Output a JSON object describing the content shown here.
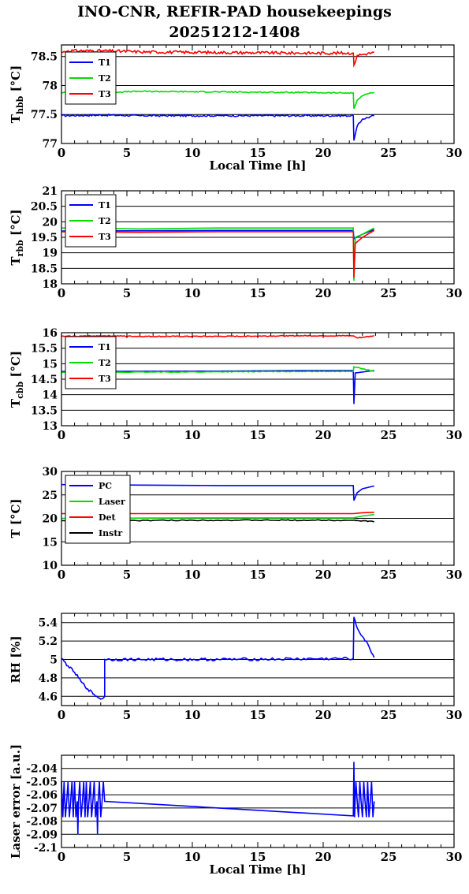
{
  "page": {
    "title": "INO-CNR, REFIR-PAD housekeepings",
    "subtitle": "20251212-1408"
  },
  "colors": {
    "blue": "#0000ff",
    "green": "#00dd00",
    "red": "#ff0000",
    "black": "#000000"
  },
  "chart_data": [
    {
      "type": "line",
      "ylabel_main": "T",
      "ylabel_sub": "hbb",
      "ylabel_tail": " [°C]",
      "xlabel": "Local Time [h]",
      "xlim": [
        0,
        30
      ],
      "xticks": [
        0,
        5,
        10,
        15,
        20,
        25,
        30
      ],
      "ylim": [
        77,
        78.7
      ],
      "yticks": [
        77,
        77.5,
        78,
        78.5
      ],
      "ytick_labels": [
        "77",
        "77.5",
        "78",
        "78.5"
      ],
      "grid": true,
      "legend_position": "top-left",
      "series": [
        {
          "name": "T1",
          "color": "#0000ff",
          "noise": 0.015,
          "points": [
            [
              0,
              77.48
            ],
            [
              3.2,
              77.49
            ],
            [
              6,
              77.48
            ],
            [
              12,
              77.48
            ],
            [
              18,
              77.48
            ],
            [
              22.3,
              77.48
            ],
            [
              22.35,
              77.05
            ],
            [
              22.6,
              77.3
            ],
            [
              23,
              77.42
            ],
            [
              23.9,
              77.48
            ]
          ]
        },
        {
          "name": "T2",
          "color": "#00dd00",
          "noise": 0.01,
          "points": [
            [
              0,
              77.88
            ],
            [
              3.2,
              77.88
            ],
            [
              6,
              77.9
            ],
            [
              12,
              77.89
            ],
            [
              18,
              77.88
            ],
            [
              22.3,
              77.87
            ],
            [
              22.35,
              77.6
            ],
            [
              22.6,
              77.75
            ],
            [
              23.2,
              77.85
            ],
            [
              23.9,
              77.88
            ]
          ]
        },
        {
          "name": "T3",
          "color": "#ff0000",
          "noise": 0.025,
          "points": [
            [
              0,
              78.57
            ],
            [
              0.5,
              78.6
            ],
            [
              3.2,
              78.6
            ],
            [
              6,
              78.58
            ],
            [
              12,
              78.57
            ],
            [
              18,
              78.56
            ],
            [
              22.3,
              78.56
            ],
            [
              22.35,
              78.35
            ],
            [
              22.6,
              78.52
            ],
            [
              23.9,
              78.57
            ]
          ]
        }
      ]
    },
    {
      "type": "line",
      "ylabel_main": "T",
      "ylabel_sub": "rbb",
      "ylabel_tail": " [°C]",
      "xlabel": "",
      "xlim": [
        0,
        30
      ],
      "xticks": [
        0,
        5,
        10,
        15,
        20,
        25,
        30
      ],
      "ylim": [
        18,
        21
      ],
      "yticks": [
        18,
        18.5,
        19,
        19.5,
        20,
        20.5,
        21
      ],
      "ytick_labels": [
        "18",
        "18.5",
        "19",
        "19.5",
        "20",
        "20.5",
        "21"
      ],
      "grid": true,
      "legend_position": "top-left",
      "series": [
        {
          "name": "T1",
          "color": "#0000ff",
          "noise": 0.0,
          "points": [
            [
              0,
              19.7
            ],
            [
              12,
              19.72
            ],
            [
              22.3,
              19.72
            ],
            [
              22.35,
              19.45
            ],
            [
              23,
              19.6
            ],
            [
              23.9,
              19.75
            ]
          ]
        },
        {
          "name": "T2",
          "color": "#00dd00",
          "noise": 0.0,
          "points": [
            [
              0,
              19.8
            ],
            [
              6,
              19.77
            ],
            [
              12,
              19.8
            ],
            [
              22.3,
              19.8
            ],
            [
              22.35,
              18.1
            ],
            [
              22.45,
              19.5
            ],
            [
              23,
              19.6
            ],
            [
              23.9,
              19.8
            ]
          ]
        },
        {
          "name": "T3",
          "color": "#ff0000",
          "noise": 0.0,
          "points": [
            [
              0,
              19.68
            ],
            [
              6,
              19.66
            ],
            [
              12,
              19.68
            ],
            [
              22.3,
              19.68
            ],
            [
              22.35,
              18.2
            ],
            [
              22.45,
              19.3
            ],
            [
              23,
              19.5
            ],
            [
              23.9,
              19.72
            ]
          ]
        }
      ]
    },
    {
      "type": "line",
      "ylabel_main": "T",
      "ylabel_sub": "cbb",
      "ylabel_tail": " [°C]",
      "xlabel": "",
      "xlim": [
        0,
        30
      ],
      "xticks": [
        0,
        5,
        10,
        15,
        20,
        25,
        30
      ],
      "ylim": [
        13,
        16
      ],
      "yticks": [
        13,
        13.5,
        14,
        14.5,
        15,
        15.5,
        16
      ],
      "ytick_labels": [
        "13",
        "13.5",
        "14",
        "14.5",
        "15",
        "15.5",
        "16"
      ],
      "grid": true,
      "legend_position": "top-left",
      "series": [
        {
          "name": "T1",
          "color": "#0000ff",
          "noise": 0.0,
          "points": [
            [
              0,
              14.75
            ],
            [
              12,
              14.76
            ],
            [
              18,
              14.78
            ],
            [
              22.3,
              14.78
            ],
            [
              22.35,
              13.7
            ],
            [
              22.45,
              14.7
            ],
            [
              23.9,
              14.78
            ]
          ]
        },
        {
          "name": "T2",
          "color": "#00dd00",
          "noise": 0.01,
          "points": [
            [
              0,
              14.72
            ],
            [
              12,
              14.74
            ],
            [
              18,
              14.75
            ],
            [
              22.3,
              14.75
            ],
            [
              22.35,
              14.9
            ],
            [
              23.9,
              14.75
            ]
          ]
        },
        {
          "name": "T3",
          "color": "#ff0000",
          "noise": 0.015,
          "points": [
            [
              0,
              15.88
            ],
            [
              3.2,
              15.9
            ],
            [
              6,
              15.88
            ],
            [
              12,
              15.88
            ],
            [
              18,
              15.9
            ],
            [
              22.3,
              15.9
            ],
            [
              22.6,
              15.83
            ],
            [
              23.9,
              15.9
            ]
          ]
        }
      ]
    },
    {
      "type": "line",
      "ylabel_main": "T [°C]",
      "ylabel_sub": "",
      "ylabel_tail": "",
      "xlabel": "",
      "xlim": [
        0,
        30
      ],
      "xticks": [
        0,
        5,
        10,
        15,
        20,
        25,
        30
      ],
      "ylim": [
        10,
        30
      ],
      "yticks": [
        10,
        15,
        20,
        25,
        30
      ],
      "ytick_labels": [
        "10",
        "15",
        "20",
        "25",
        "30"
      ],
      "grid": true,
      "legend_position": "top-left",
      "series": [
        {
          "name": "PC",
          "color": "#0000ff",
          "noise": 0.0,
          "points": [
            [
              0,
              27.2
            ],
            [
              6,
              27.1
            ],
            [
              12,
              27.0
            ],
            [
              18,
              27.0
            ],
            [
              22.3,
              27.0
            ],
            [
              22.35,
              23.8
            ],
            [
              22.6,
              25.5
            ],
            [
              23,
              26.3
            ],
            [
              23.9,
              26.9
            ]
          ]
        },
        {
          "name": "Laser",
          "color": "#00dd00",
          "noise": 0.0,
          "points": [
            [
              0,
              20.0
            ],
            [
              12,
              20.1
            ],
            [
              22.3,
              20.1
            ],
            [
              23,
              20.5
            ],
            [
              23.9,
              20.8
            ]
          ]
        },
        {
          "name": "Det",
          "color": "#ff0000",
          "noise": 0.0,
          "points": [
            [
              0,
              21.0
            ],
            [
              12,
              21.0
            ],
            [
              22.3,
              21.0
            ],
            [
              23,
              21.2
            ],
            [
              23.9,
              21.3
            ]
          ]
        },
        {
          "name": "Instr",
          "color": "#000000",
          "noise": 0.1,
          "points": [
            [
              0,
              19.5
            ],
            [
              12,
              19.6
            ],
            [
              22.3,
              19.6
            ],
            [
              23.9,
              19.3
            ]
          ]
        }
      ]
    },
    {
      "type": "line",
      "ylabel_main": "RH [%]",
      "ylabel_sub": "",
      "ylabel_tail": "",
      "xlabel": "",
      "xlim": [
        0,
        30
      ],
      "xticks": [
        0,
        5,
        10,
        15,
        20,
        25,
        30
      ],
      "ylim": [
        4.5,
        5.5
      ],
      "yticks": [
        4.6,
        4.8,
        5,
        5.2,
        5.4
      ],
      "ytick_labels": [
        "4.6",
        "4.8",
        "5",
        "5.2",
        "5.4"
      ],
      "grid": true,
      "legend_position": "none",
      "series": [
        {
          "name": "",
          "color": "#0000ff",
          "noise": 0.015,
          "points": [
            [
              0,
              5.01
            ],
            [
              0.5,
              4.93
            ],
            [
              1,
              4.86
            ],
            [
              1.5,
              4.76
            ],
            [
              2,
              4.68
            ],
            [
              2.5,
              4.62
            ],
            [
              3,
              4.57
            ],
            [
              3.3,
              4.6
            ],
            [
              3.3,
              5.0
            ],
            [
              12,
              5.0
            ],
            [
              22.3,
              5.01
            ],
            [
              22.35,
              5.46
            ],
            [
              22.6,
              5.34
            ],
            [
              23,
              5.25
            ],
            [
              23.5,
              5.14
            ],
            [
              23.9,
              5.02
            ]
          ]
        }
      ]
    },
    {
      "type": "line",
      "ylabel_main": "Laser error [a.u.]",
      "ylabel_sub": "",
      "ylabel_tail": "",
      "xlabel": "Local Time [h]",
      "xlim": [
        0,
        30
      ],
      "xticks": [
        0,
        5,
        10,
        15,
        20,
        25,
        30
      ],
      "ylim": [
        -2.1,
        -2.03
      ],
      "yticks": [
        -2.1,
        -2.09,
        -2.08,
        -2.07,
        -2.06,
        -2.05,
        -2.04
      ],
      "ytick_labels": [
        "-2.1",
        "-2.09",
        "-2.08",
        "-2.07",
        "-2.06",
        "-2.05",
        "-2.04"
      ],
      "grid": true,
      "legend_position": "none",
      "series": [
        {
          "name": "",
          "color": "#0000ff",
          "noise": 0.0,
          "points": [
            [
              0,
              -2.05
            ],
            [
              0.1,
              -2.077
            ],
            [
              0.2,
              -2.05
            ],
            [
              0.3,
              -2.077
            ],
            [
              0.4,
              -2.065
            ],
            [
              0.5,
              -2.05
            ],
            [
              0.6,
              -2.077
            ],
            [
              0.7,
              -2.065
            ],
            [
              0.8,
              -2.05
            ],
            [
              0.9,
              -2.077
            ],
            [
              1.0,
              -2.05
            ],
            [
              1.1,
              -2.077
            ],
            [
              1.2,
              -2.065
            ],
            [
              1.25,
              -2.09
            ],
            [
              1.3,
              -2.065
            ],
            [
              1.4,
              -2.05
            ],
            [
              1.5,
              -2.077
            ],
            [
              1.6,
              -2.065
            ],
            [
              1.7,
              -2.05
            ],
            [
              1.8,
              -2.077
            ],
            [
              1.9,
              -2.05
            ],
            [
              2.0,
              -2.077
            ],
            [
              2.1,
              -2.065
            ],
            [
              2.2,
              -2.05
            ],
            [
              2.3,
              -2.077
            ],
            [
              2.4,
              -2.065
            ],
            [
              2.5,
              -2.05
            ],
            [
              2.6,
              -2.077
            ],
            [
              2.7,
              -2.065
            ],
            [
              2.75,
              -2.09
            ],
            [
              2.8,
              -2.065
            ],
            [
              2.9,
              -2.05
            ],
            [
              3.0,
              -2.077
            ],
            [
              3.1,
              -2.065
            ],
            [
              3.2,
              -2.05
            ],
            [
              3.3,
              -2.065
            ],
            [
              12,
              -2.07
            ],
            [
              22.3,
              -2.076
            ],
            [
              22.35,
              -2.035
            ],
            [
              22.4,
              -2.077
            ],
            [
              22.5,
              -2.05
            ],
            [
              22.6,
              -2.065
            ],
            [
              22.7,
              -2.077
            ],
            [
              22.8,
              -2.05
            ],
            [
              22.9,
              -2.065
            ],
            [
              23.0,
              -2.077
            ],
            [
              23.1,
              -2.05
            ],
            [
              23.2,
              -2.065
            ],
            [
              23.3,
              -2.077
            ],
            [
              23.4,
              -2.05
            ],
            [
              23.5,
              -2.077
            ],
            [
              23.6,
              -2.065
            ],
            [
              23.7,
              -2.05
            ],
            [
              23.8,
              -2.077
            ],
            [
              23.9,
              -2.065
            ]
          ]
        }
      ]
    }
  ]
}
